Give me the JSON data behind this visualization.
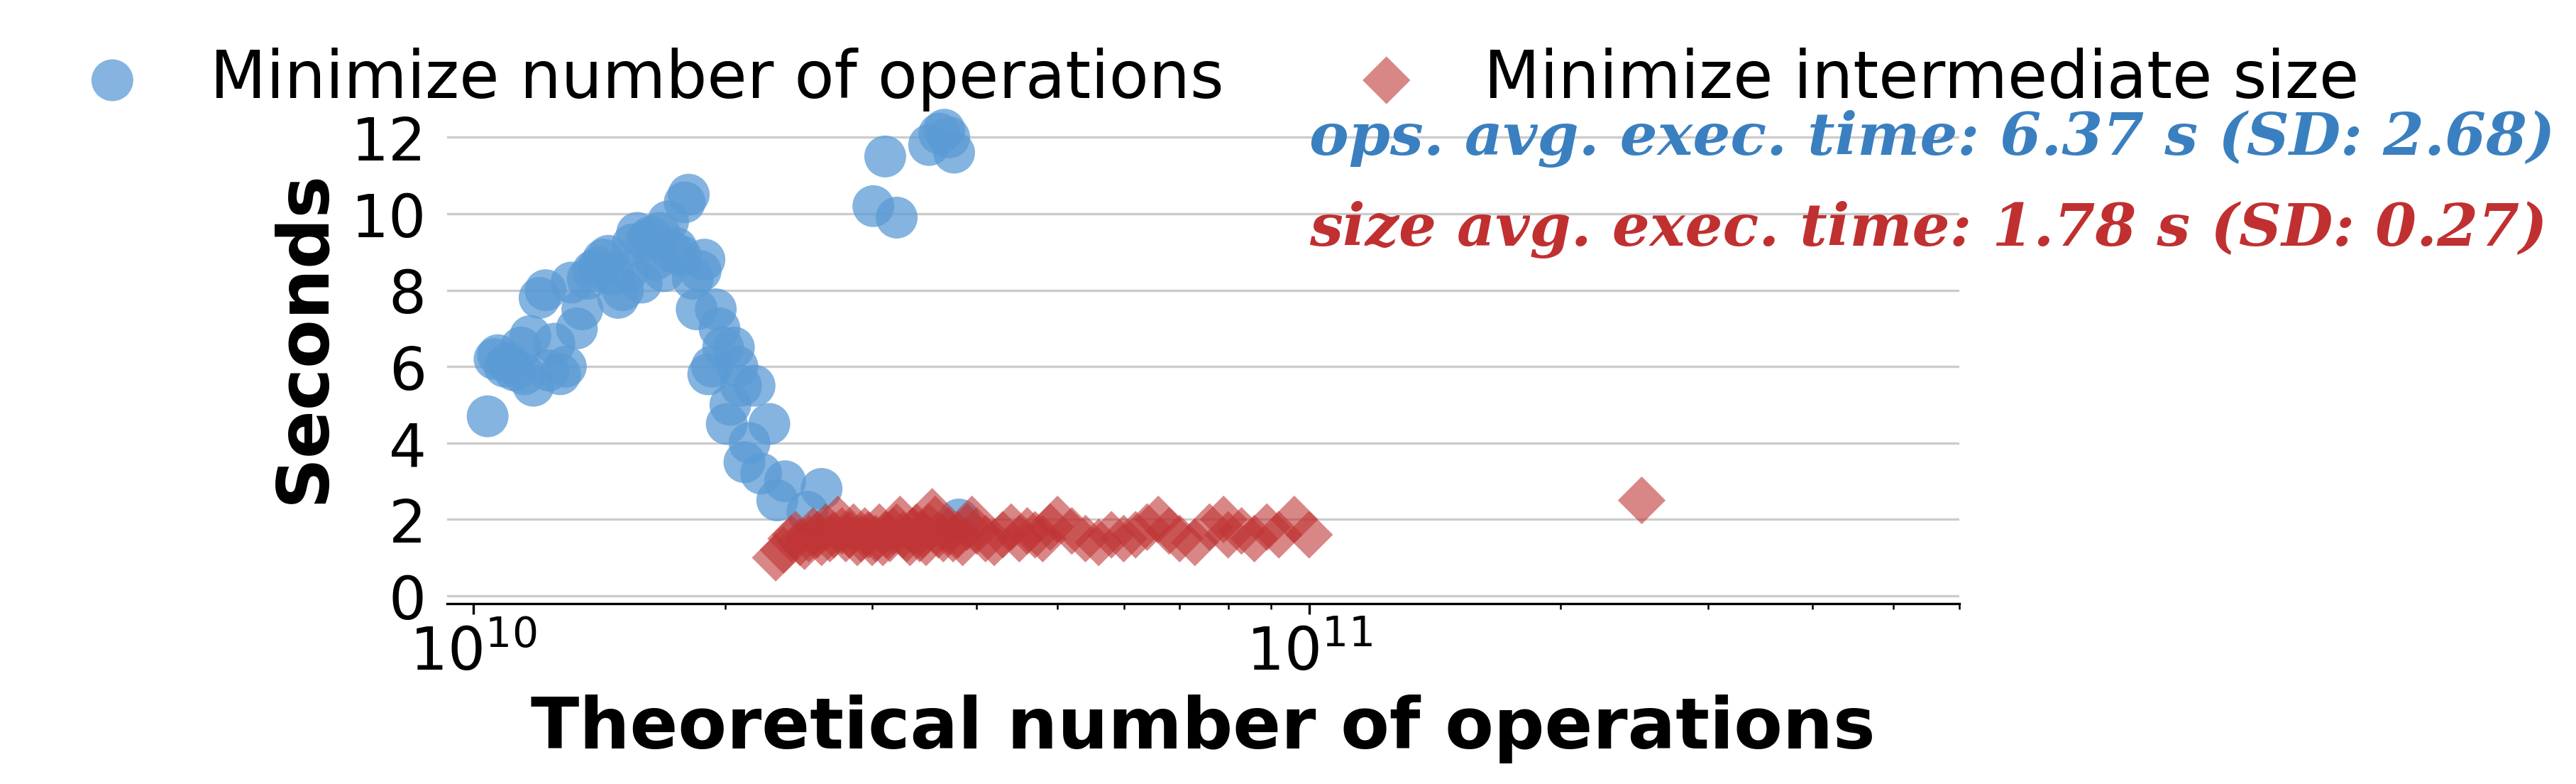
{
  "xlabel": "Theoretical number of operations",
  "ylabel": "Seconds",
  "blue_label": "Minimize number of operations",
  "red_label": "Minimize intermediate size",
  "annotation_ops": "ops. avg. exec. time: 6.37 s (SD: 2.68)",
  "annotation_size": "size avg. exec. time: 1.78 s (SD: 0.27)",
  "annotation_ops_color": "#3a80c0",
  "annotation_size_color": "#c03030",
  "blue_color": "#5b9bd5",
  "red_color": "#c03535",
  "xlim": [
    9300000000.0,
    600000000000.0
  ],
  "ylim": [
    -0.2,
    13.8
  ],
  "yticks": [
    0,
    2,
    4,
    6,
    8,
    10,
    12
  ],
  "background_color": "#ffffff",
  "grid_color": "#cccccc",
  "marker_size_blue": 200,
  "marker_size_red": 130,
  "annotation_fontsize": 20,
  "label_fontsize": 24,
  "tick_fontsize": 20,
  "legend_fontsize": 22,
  "blue_x": [
    10400000000.0,
    10600000000.0,
    10700000000.0,
    10900000000.0,
    11000000000.0,
    11200000000.0,
    11400000000.0,
    11500000000.0,
    11700000000.0,
    11800000000.0,
    12000000000.0,
    12200000000.0,
    12300000000.0,
    12500000000.0,
    12700000000.0,
    12900000000.0,
    13100000000.0,
    13300000000.0,
    13500000000.0,
    13700000000.0,
    13900000000.0,
    14100000000.0,
    14300000000.0,
    14500000000.0,
    14700000000.0,
    14900000000.0,
    15100000000.0,
    15300000000.0,
    15500000000.0,
    15700000000.0,
    15900000000.0,
    16100000000.0,
    16300000000.0,
    16500000000.0,
    16700000000.0,
    16900000000.0,
    17100000000.0,
    17300000000.0,
    17500000000.0,
    17700000000.0,
    17900000000.0,
    18100000000.0,
    18300000000.0,
    18500000000.0,
    18700000000.0,
    18900000000.0,
    19100000000.0,
    19300000000.0,
    19500000000.0,
    19700000000.0,
    19900000000.0,
    20100000000.0,
    20300000000.0,
    20500000000.0,
    20700000000.0,
    20900000000.0,
    21100000000.0,
    21400000000.0,
    21700000000.0,
    22100000000.0,
    22600000000.0,
    23100000000.0,
    23600000000.0,
    25100000000.0,
    26100000000.0,
    30100000000.0,
    31100000000.0,
    32100000000.0,
    35100000000.0,
    36100000000.0,
    36600000000.0,
    37100000000.0,
    37600000000.0,
    38100000000.0
  ],
  "blue_y": [
    4.7,
    6.2,
    6.3,
    6.0,
    6.1,
    5.9,
    6.5,
    5.8,
    6.8,
    5.5,
    7.8,
    8.0,
    5.9,
    6.6,
    5.8,
    6.0,
    8.2,
    7.0,
    7.5,
    8.3,
    8.5,
    8.6,
    8.8,
    8.9,
    8.4,
    7.8,
    8.0,
    8.5,
    9.2,
    9.5,
    8.2,
    9.3,
    9.4,
    8.8,
    9.5,
    8.5,
    9.8,
    9.0,
    9.1,
    8.9,
    10.3,
    10.5,
    8.3,
    7.5,
    8.5,
    8.8,
    5.8,
    6.0,
    7.5,
    7.0,
    6.5,
    4.5,
    5.0,
    6.5,
    6.0,
    5.5,
    3.5,
    4.0,
    5.5,
    3.2,
    4.5,
    2.5,
    3.0,
    2.2,
    2.8,
    10.2,
    11.5,
    9.9,
    11.8,
    12.1,
    12.2,
    12.0,
    11.6,
    2.0
  ],
  "red_x": [
    23000000000.0,
    23500000000.0,
    24000000000.0,
    24300000000.0,
    24600000000.0,
    24900000000.0,
    25200000000.0,
    25500000000.0,
    25800000000.0,
    26100000000.0,
    26400000000.0,
    26700000000.0,
    27000000000.0,
    27300000000.0,
    27600000000.0,
    27900000000.0,
    28200000000.0,
    28500000000.0,
    28800000000.0,
    29100000000.0,
    29400000000.0,
    29700000000.0,
    30000000000.0,
    30300000000.0,
    30600000000.0,
    30900000000.0,
    31200000000.0,
    31500000000.0,
    31800000000.0,
    32100000000.0,
    32400000000.0,
    32700000000.0,
    33000000000.0,
    33300000000.0,
    33600000000.0,
    33900000000.0,
    34200000000.0,
    34500000000.0,
    34800000000.0,
    35100000000.0,
    35400000000.0,
    35700000000.0,
    36000000000.0,
    36500000000.0,
    37000000000.0,
    37500000000.0,
    38000000000.0,
    38500000000.0,
    39000000000.0,
    39500000000.0,
    40000000000.0,
    41000000000.0,
    42000000000.0,
    43000000000.0,
    44000000000.0,
    45000000000.0,
    46000000000.0,
    47000000000.0,
    48000000000.0,
    49000000000.0,
    50000000000.0,
    52000000000.0,
    54000000000.0,
    56000000000.0,
    58000000000.0,
    60000000000.0,
    62000000000.0,
    64000000000.0,
    66000000000.0,
    68000000000.0,
    70000000000.0,
    73000000000.0,
    76000000000.0,
    79000000000.0,
    80000000000.0,
    83000000000.0,
    86000000000.0,
    89000000000.0,
    92000000000.0,
    96000000000.0,
    100000000000.0,
    250000000000.0
  ],
  "red_y": [
    1.0,
    1.2,
    1.5,
    1.6,
    1.4,
    1.3,
    1.5,
    1.7,
    1.6,
    1.4,
    1.8,
    1.5,
    1.6,
    2.0,
    1.7,
    1.5,
    1.6,
    1.8,
    1.4,
    1.5,
    1.7,
    1.6,
    1.4,
    1.5,
    1.8,
    1.4,
    1.6,
    1.5,
    1.7,
    1.8,
    2.0,
    1.6,
    1.5,
    1.4,
    1.7,
    1.8,
    1.5,
    1.6,
    1.4,
    1.8,
    2.2,
    2.0,
    1.6,
    1.5,
    1.7,
    1.5,
    1.6,
    1.4,
    1.8,
    2.0,
    1.7,
    1.5,
    1.4,
    1.6,
    1.8,
    1.5,
    1.7,
    1.6,
    1.5,
    1.8,
    2.0,
    1.7,
    1.5,
    1.4,
    1.6,
    1.5,
    1.6,
    1.8,
    2.0,
    1.7,
    1.5,
    1.4,
    1.8,
    2.0,
    1.6,
    1.7,
    1.5,
    1.8,
    1.6,
    2.0,
    1.6,
    2.5
  ]
}
